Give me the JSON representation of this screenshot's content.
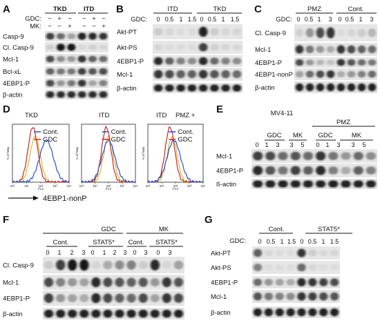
{
  "panelA": {
    "letter": "A",
    "groups": [
      "TKD",
      "ITD"
    ],
    "cond_labels": [
      "GDC:",
      "MK:"
    ],
    "gdc_signs": [
      "−",
      "+",
      "−",
      "−",
      "+",
      "−"
    ],
    "mk_signs": [
      "−",
      "−",
      "+",
      "−",
      "−",
      "+"
    ],
    "rows": [
      "Casp-9",
      "Cl. Casp-9",
      "Mcl-1",
      "Bcl-xL",
      "4EBP1-P",
      "β-actin"
    ]
  },
  "panelB": {
    "letter": "B",
    "groups": [
      "ITD",
      "TKD"
    ],
    "cond_label": "GDC:",
    "conds": [
      "0",
      "0.5",
      "1",
      "1.5",
      "0",
      "0.5",
      "1",
      "1.5"
    ],
    "rows": [
      "Akt-PT",
      "Akt-PS",
      "4EBP1-P",
      "Mcl-1",
      "β-actin"
    ]
  },
  "panelC": {
    "letter": "C",
    "groups": [
      "PMZ",
      "Cont."
    ],
    "cond_label": "GDC:",
    "conds": [
      "0",
      "0.5",
      "1",
      "3",
      "0",
      "0.5",
      "1",
      "3"
    ],
    "rows": [
      "Cl. Casp-9",
      "Mcl-1",
      "4EBP1-P",
      "4EBP1-nonP",
      "β-actin"
    ]
  },
  "panelD": {
    "letter": "D",
    "plots": [
      {
        "title": "TKD",
        "legend": [
          "Cont.",
          "GDC"
        ]
      },
      {
        "title": "ITD",
        "legend": [
          "Cont.",
          "GDC"
        ]
      },
      {
        "title": "ITD",
        "title_extra": "PMZ +",
        "legend": [
          "Cont.",
          "GDC"
        ]
      }
    ],
    "axis_label": "4EBP1-nonP",
    "y_label": "% of Max",
    "x_tick": "FL2",
    "x_decades": [
      "10⁰",
      "10¹",
      "10²",
      "10³",
      "10⁴"
    ],
    "colors": {
      "cont": "#1f4fd8",
      "gdc": "#d62020",
      "extra": "#c8b400"
    }
  },
  "panelE": {
    "letter": "E",
    "cell_line": "MV4-11",
    "group_pmz": "PMZ",
    "sub_groups": [
      "GDC",
      "MK",
      "GDC",
      "MK"
    ],
    "conds": [
      "0",
      "1",
      "3",
      "3",
      "5",
      "0",
      "1",
      "3",
      "3",
      "5"
    ],
    "rows": [
      "Mcl-1",
      "4EBP1-P",
      "ß-actin"
    ]
  },
  "panelF": {
    "letter": "F",
    "groups": [
      "GDC",
      "MK"
    ],
    "sub_groups": [
      "Cont.",
      "STAT5*",
      "Cont.",
      "STAT5*"
    ],
    "conds": [
      "0",
      "1",
      "2",
      "3",
      "0",
      "1",
      "2",
      "3",
      "0",
      "3",
      "0",
      "3"
    ],
    "rows": [
      "Cl. Casp-9",
      "Mcl-1",
      "4EBP1-P",
      "β-actin"
    ]
  },
  "panelG": {
    "letter": "G",
    "groups": [
      "Cont.",
      "STAT5*"
    ],
    "cond_label": "GDC:",
    "conds": [
      "0",
      "0.5",
      "1",
      "1.5",
      "0",
      "0.5",
      "1",
      "1.5"
    ],
    "rows": [
      "Akt-PT",
      "Akt-PS",
      "4EBP1-P",
      "Mcl-1",
      "β-actin"
    ]
  }
}
